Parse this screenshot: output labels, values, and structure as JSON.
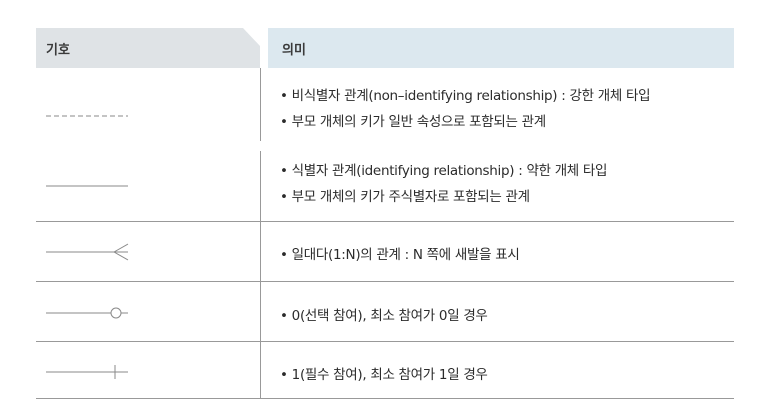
{
  "header": {
    "symbol_label": "기호",
    "meaning_label": "의미"
  },
  "rows": [
    {
      "symbol": "dashed-line-icon",
      "lines": [
        "• 비식별자 관계(non–identifying relationship) : 강한 개체 타입",
        "• 부모 개체의 키가 일반 속성으로 포함되는 관계"
      ]
    },
    {
      "symbol": "solid-line-icon",
      "lines": [
        "• 식별자 관계(identifying relationship) : 약한 개체 타입",
        "• 부모 개체의 키가 주식별자로 포함되는 관계"
      ]
    },
    {
      "symbol": "crows-foot-icon",
      "lines": [
        "• 일대다(1:N)의 관계 : N 쪽에 새발을 표시"
      ]
    },
    {
      "symbol": "circle-optional-icon",
      "lines": [
        "• 0(선택 참여), 최소 참여가 0일 경우"
      ]
    },
    {
      "symbol": "bar-mandatory-icon",
      "lines": [
        "• 1(필수 참여), 최소 참여가 1일 경우"
      ]
    }
  ],
  "colors": {
    "header_left_bg": "#dfe3e6",
    "header_right_bg": "#dce8ef",
    "rule": "#999999",
    "text": "#2b2b2b"
  }
}
